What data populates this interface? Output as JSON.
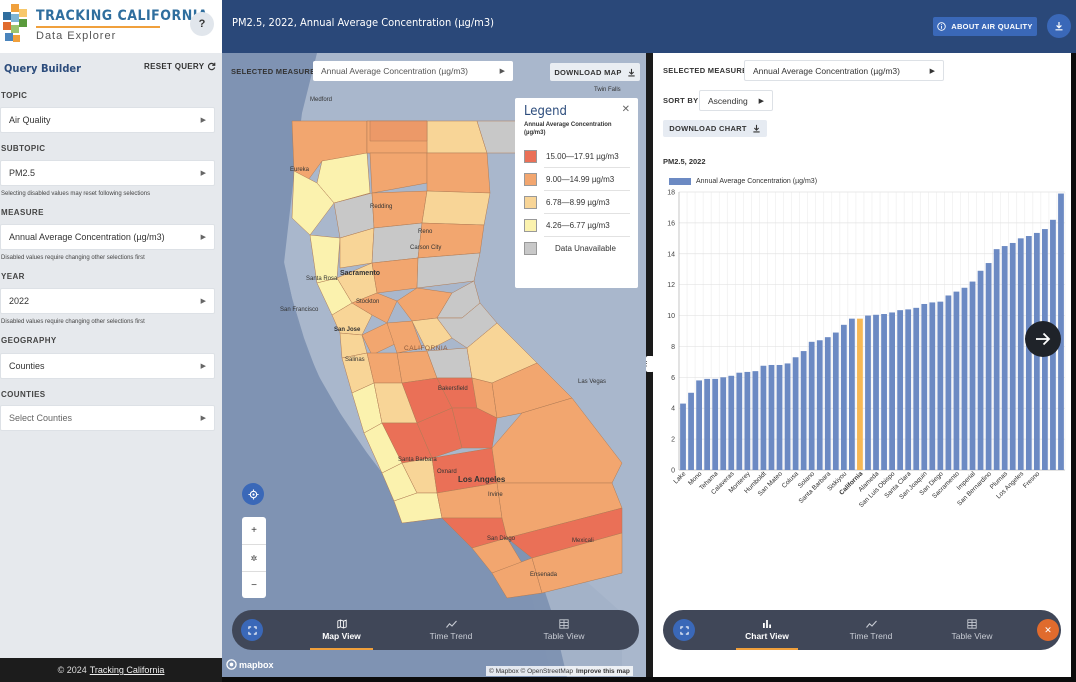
{
  "brand": {
    "title": "TRACKING CALIFORNIA",
    "subtitle": "Data Explorer",
    "help": "?"
  },
  "query_builder": {
    "title": "Query Builder",
    "reset": "RESET QUERY",
    "fields": [
      {
        "label": "TOPIC",
        "value": "Air Quality",
        "hint": ""
      },
      {
        "label": "SUBTOPIC",
        "value": "PM2.5",
        "hint": "Selecting disabled values may reset following selections"
      },
      {
        "label": "MEASURE",
        "value": "Annual Average Concentration (µg/m3)",
        "hint": "Disabled values require changing other selections first"
      },
      {
        "label": "YEAR",
        "value": "2022",
        "hint": "Disabled values require changing other selections first"
      },
      {
        "label": "GEOGRAPHY",
        "value": "Counties",
        "hint": ""
      },
      {
        "label": "COUNTIES",
        "value": "Select Counties",
        "hint": ""
      }
    ]
  },
  "footer": {
    "copyright": "© 2024",
    "link": "Tracking California"
  },
  "header": {
    "title": "PM2.5, 2022, Annual Average Concentration (µg/m3)",
    "about": "ABOUT AIR QUALITY"
  },
  "map": {
    "measure_label": "SELECTED MEASURE",
    "measure_value": "Annual Average Concentration (µg/m3)",
    "download": "DOWNLOAD MAP",
    "legend": {
      "title": "Legend",
      "subtitle": "Annual Average Concentration (µg/m3)",
      "items": [
        {
          "label": "15.00—17.91 µg/m3",
          "color": "#ea7057"
        },
        {
          "label": "9.00—14.99 µg/m3",
          "color": "#f2a66f"
        },
        {
          "label": "6.78—8.99 µg/m3",
          "color": "#f8d597"
        },
        {
          "label": "4.26—6.77 µg/m3",
          "color": "#fbf2ae"
        },
        {
          "label": "Data Unavailable",
          "color": "#c8c8c8"
        }
      ]
    },
    "places": [
      "Medford",
      "Eureka",
      "Redding",
      "Twin Falls",
      "Reno",
      "Carson City",
      "Santa Rosa",
      "Sacramento",
      "Stockton",
      "San Francisco",
      "San Jose",
      "Salinas",
      "CALIFORNIA",
      "Bakersfield",
      "Las Vegas",
      "Santa Barbara",
      "Oxnard",
      "Los Angeles",
      "Irvine",
      "San Diego",
      "Mexicali",
      "Ensenada"
    ],
    "attribution": "© Mapbox © OpenStreetMap",
    "improve": "Improve this map",
    "mapbox": "mapbox",
    "nav": [
      {
        "label": "Map View",
        "active": true
      },
      {
        "label": "Time Trend",
        "active": false
      },
      {
        "label": "Table View",
        "active": false
      }
    ]
  },
  "chart_panel": {
    "measure_label": "SELECTED MEASURE",
    "measure_value": "Annual Average Concentration (µg/m3)",
    "sort_label": "SORT BY",
    "sort_value": "Ascending",
    "download": "DOWNLOAD CHART",
    "caption": "PM2.5, 2022",
    "nav": [
      {
        "label": "Chart View",
        "active": true
      },
      {
        "label": "Time Trend",
        "active": false
      },
      {
        "label": "Table View",
        "active": false
      }
    ]
  },
  "chart_data": {
    "type": "bar",
    "xlabel": "",
    "ylabel": "",
    "ylim": [
      0,
      18
    ],
    "yticks": [
      0,
      2,
      4,
      6,
      8,
      10,
      12,
      14,
      16,
      18
    ],
    "grid": true,
    "legend": "top-left",
    "highlight": "California",
    "highlight_color": "#f6b854",
    "bar_color": "#6c8ac3",
    "series": [
      {
        "name": "Annual Average Concentration (µg/m3)",
        "values": [
          4.3,
          5.0,
          5.8,
          5.9,
          5.9,
          6.0,
          6.1,
          6.3,
          6.35,
          6.4,
          6.75,
          6.8,
          6.8,
          6.9,
          7.3,
          7.7,
          8.3,
          8.4,
          8.6,
          8.9,
          9.4,
          9.8,
          9.8,
          10.0,
          10.05,
          10.1,
          10.2,
          10.35,
          10.4,
          10.5,
          10.75,
          10.85,
          10.9,
          11.3,
          11.55,
          11.8,
          12.2,
          12.9,
          13.4,
          14.3,
          14.5,
          14.7,
          15.0,
          15.15,
          15.35,
          15.6,
          16.2,
          17.9
        ]
      }
    ],
    "categories": [
      "Lake",
      "",
      "Mono",
      "",
      "Tehama",
      "",
      "Calaveras",
      "",
      "Monterey",
      "",
      "Humboldt",
      "",
      "San Mateo",
      "",
      "Colusa",
      "",
      "Solano",
      "",
      "Santa Barbara",
      "",
      "Siskiyou",
      "",
      "California",
      "",
      "Alameda",
      "",
      "San Luis Obispo",
      "",
      "Santa Clara",
      "",
      "San Joaquin",
      "",
      "San Diego",
      "",
      "Sacramento",
      "",
      "Imperial",
      "",
      "San Bernardino",
      "",
      "Plumas",
      "",
      "Los Angeles",
      "",
      "Fresno",
      "",
      "",
      ""
    ]
  }
}
